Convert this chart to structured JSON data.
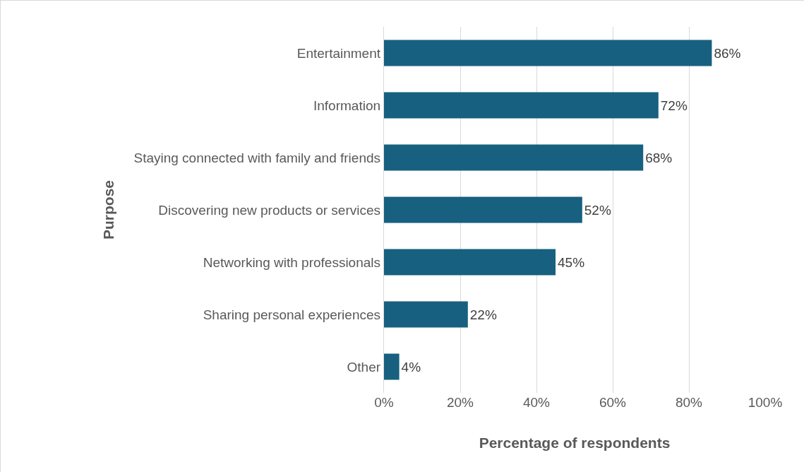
{
  "chart_data": {
    "type": "bar",
    "orientation": "horizontal",
    "xlabel": "Percentage of respondents",
    "ylabel": "Purpose",
    "categories": [
      "Entertainment",
      "Information",
      "Staying connected with family and friends",
      "Discovering new products or services",
      "Networking with professionals",
      "Sharing personal experiences",
      "Other"
    ],
    "values": [
      86,
      72,
      68,
      52,
      45,
      22,
      4
    ],
    "value_labels": [
      "86%",
      "72%",
      "68%",
      "52%",
      "45%",
      "22%",
      "4%"
    ],
    "color": "#17607f",
    "xlim": [
      0,
      100
    ],
    "xticks": [
      {
        "value": 0,
        "label": "0%"
      },
      {
        "value": 20,
        "label": "20%"
      },
      {
        "value": 40,
        "label": "40%"
      },
      {
        "value": 60,
        "label": "60%"
      },
      {
        "value": 80,
        "label": "80%"
      },
      {
        "value": 100,
        "label": "100%"
      }
    ],
    "grid": "x",
    "legend": false
  }
}
